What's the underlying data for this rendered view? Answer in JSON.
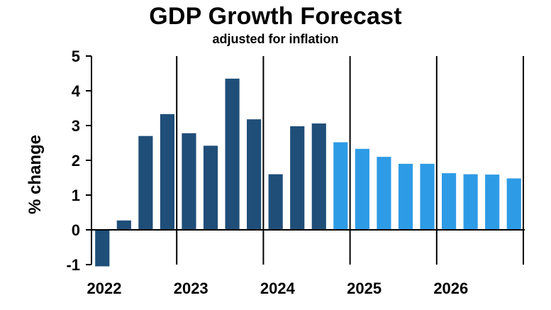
{
  "chart_data": {
    "type": "bar",
    "title": "GDP Growth Forecast",
    "subtitle": "adjusted for inflation",
    "ylabel": "% change",
    "xlabel": "",
    "ylim": [
      -1,
      5
    ],
    "yticks": [
      "5",
      "4",
      "3",
      "2",
      "1",
      "0",
      "-1"
    ],
    "ytick_values": [
      5,
      4,
      3,
      2,
      1,
      0,
      -1
    ],
    "year_labels": [
      "2022",
      "2023",
      "2024",
      "2025",
      "2026"
    ],
    "grid": false,
    "colors": {
      "actual": "#1f4e79",
      "forecast": "#2e9be6"
    },
    "categories": [
      "2022 Q1",
      "2022 Q2",
      "2022 Q3",
      "2022 Q4",
      "2023 Q1",
      "2023 Q2",
      "2023 Q3",
      "2023 Q4",
      "2024 Q1",
      "2024 Q2",
      "2024 Q3",
      "2024 Q4",
      "2025 Q1",
      "2025 Q2",
      "2025 Q3",
      "2025 Q4",
      "2026 Q1",
      "2026 Q2",
      "2026 Q3",
      "2026 Q4"
    ],
    "values": [
      -1.05,
      0.27,
      2.7,
      3.33,
      2.78,
      2.42,
      4.35,
      3.18,
      1.6,
      2.98,
      3.06,
      2.52,
      2.33,
      2.1,
      1.9,
      1.9,
      1.63,
      1.6,
      1.59,
      1.48
    ],
    "kind": [
      "actual",
      "actual",
      "actual",
      "actual",
      "actual",
      "actual",
      "actual",
      "actual",
      "actual",
      "actual",
      "actual",
      "forecast",
      "forecast",
      "forecast",
      "forecast",
      "forecast",
      "forecast",
      "forecast",
      "forecast",
      "forecast"
    ]
  }
}
